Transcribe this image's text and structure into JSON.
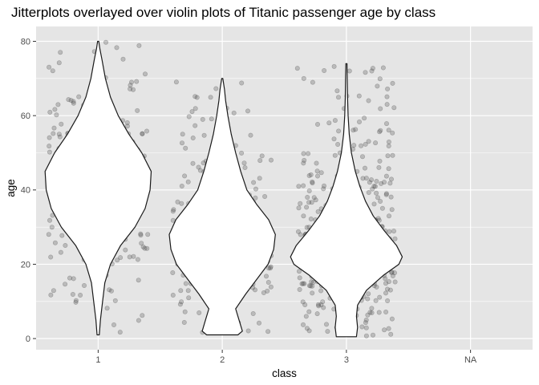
{
  "chart_data": {
    "type": "scatter",
    "title": "Jitterplots overlayed over violin plots of Titanic passenger age by class",
    "xlabel": "class",
    "ylabel": "age",
    "categories": [
      "1",
      "2",
      "3",
      "NA"
    ],
    "ylim": [
      -3,
      84
    ],
    "y_ticks": [
      0,
      20,
      40,
      60,
      80
    ],
    "grid": true,
    "legend": "none",
    "colors": {
      "panel": "#e5e5e5",
      "grid": "#ffffff",
      "points": "#4d4d4d",
      "violin_fill": "#ffffff",
      "violin_stroke": "#1a1a1a"
    },
    "violins": [
      {
        "category": "1",
        "age_range": [
          1,
          80
        ],
        "profile": [
          [
            1,
            0.02
          ],
          [
            5,
            0.04
          ],
          [
            10,
            0.08
          ],
          [
            15,
            0.12
          ],
          [
            20,
            0.22
          ],
          [
            25,
            0.4
          ],
          [
            30,
            0.66
          ],
          [
            35,
            0.84
          ],
          [
            40,
            0.93
          ],
          [
            45,
            0.95
          ],
          [
            50,
            0.78
          ],
          [
            55,
            0.55
          ],
          [
            60,
            0.36
          ],
          [
            65,
            0.22
          ],
          [
            70,
            0.13
          ],
          [
            75,
            0.07
          ],
          [
            78,
            0.03
          ],
          [
            80,
            0.01
          ]
        ]
      },
      {
        "category": "2",
        "age_range": [
          1,
          70
        ],
        "profile": [
          [
            1,
            0.28
          ],
          [
            2,
            0.36
          ],
          [
            5,
            0.3
          ],
          [
            8,
            0.24
          ],
          [
            12,
            0.42
          ],
          [
            16,
            0.62
          ],
          [
            20,
            0.82
          ],
          [
            24,
            0.92
          ],
          [
            28,
            0.95
          ],
          [
            32,
            0.83
          ],
          [
            36,
            0.62
          ],
          [
            40,
            0.44
          ],
          [
            45,
            0.33
          ],
          [
            50,
            0.24
          ],
          [
            55,
            0.16
          ],
          [
            60,
            0.1
          ],
          [
            64,
            0.06
          ],
          [
            67,
            0.04
          ],
          [
            70,
            0.01
          ]
        ]
      },
      {
        "category": "3",
        "age_range": [
          0.5,
          74
        ],
        "profile": [
          [
            0.5,
            0.18
          ],
          [
            3,
            0.2
          ],
          [
            6,
            0.18
          ],
          [
            9,
            0.2
          ],
          [
            13,
            0.36
          ],
          [
            17,
            0.66
          ],
          [
            20,
            0.94
          ],
          [
            22,
            1.0
          ],
          [
            25,
            0.9
          ],
          [
            29,
            0.68
          ],
          [
            33,
            0.48
          ],
          [
            37,
            0.34
          ],
          [
            41,
            0.24
          ],
          [
            45,
            0.16
          ],
          [
            50,
            0.09
          ],
          [
            55,
            0.05
          ],
          [
            60,
            0.03
          ],
          [
            65,
            0.02
          ],
          [
            70,
            0.015
          ],
          [
            74,
            0.01
          ]
        ]
      }
    ]
  }
}
